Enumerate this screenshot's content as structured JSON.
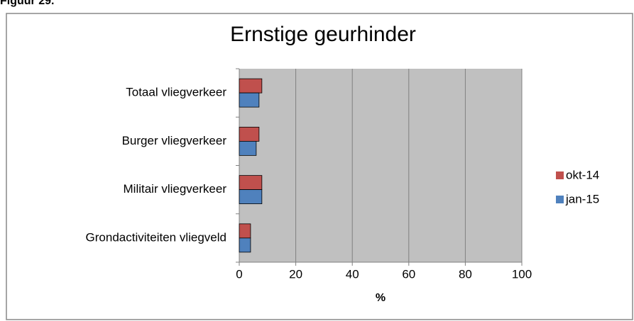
{
  "figure_label": "Figuur 29.",
  "chart_data": {
    "type": "hbar",
    "title": "Ernstige geurhinder",
    "xlabel": "%",
    "categories": [
      "Totaal vliegverkeer",
      "Burger vliegverkeer",
      "Militair vliegverkeer",
      "Grondactiviteiten vliegveld"
    ],
    "series": [
      {
        "name": "okt-14",
        "color": "#c0504d",
        "values": [
          8,
          7,
          8,
          4
        ]
      },
      {
        "name": "jan-15",
        "color": "#4f81bd",
        "values": [
          7,
          6,
          8,
          4
        ]
      }
    ],
    "xlim": [
      0,
      100
    ],
    "xticks": [
      0,
      20,
      40,
      60,
      80,
      100
    ],
    "grid": true,
    "legend": "right"
  }
}
